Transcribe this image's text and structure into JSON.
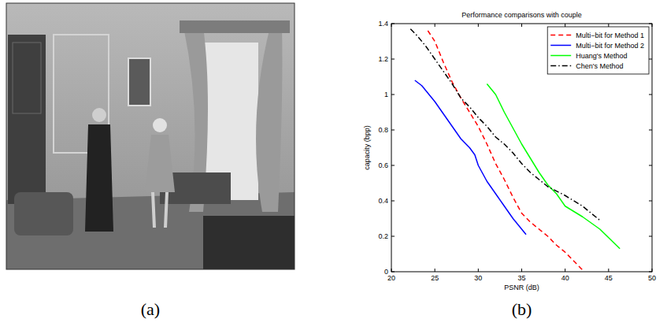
{
  "panel_labels": {
    "image": "(a)",
    "chart": "(b)"
  },
  "chart_data": {
    "type": "line",
    "title": "Performance comparisons with couple",
    "x_label": "PSNR (dB)",
    "y_label": "capacity (bpp)",
    "xlim": [
      20,
      50
    ],
    "xticks": [
      20,
      25,
      30,
      35,
      40,
      45,
      50
    ],
    "ylim": [
      0,
      1.4
    ],
    "yticks": [
      0,
      0.2,
      0.4,
      0.6,
      0.8,
      1,
      1.2,
      1.4
    ],
    "grid": false,
    "legend": "upper right",
    "series": [
      {
        "name": "Multi−bit for Method 1",
        "color": "#ff0000",
        "line_style": "dashed",
        "x": [
          24.2,
          25,
          26,
          27,
          28,
          29,
          30,
          31,
          32,
          33,
          34,
          35,
          36,
          37,
          38,
          39,
          40,
          41,
          42
        ],
        "values": [
          1.36,
          1.3,
          1.18,
          1.07,
          0.98,
          0.9,
          0.82,
          0.72,
          0.61,
          0.52,
          0.42,
          0.33,
          0.28,
          0.24,
          0.2,
          0.15,
          0.11,
          0.06,
          0.01
        ]
      },
      {
        "name": "Multi−bit for Method 2",
        "color": "#0000ff",
        "line_style": "solid",
        "x": [
          22.7,
          23.5,
          25,
          26,
          27,
          28,
          29,
          29.6,
          30,
          31,
          32,
          33,
          34,
          35.5
        ],
        "values": [
          1.08,
          1.05,
          0.96,
          0.89,
          0.82,
          0.75,
          0.7,
          0.66,
          0.6,
          0.51,
          0.44,
          0.37,
          0.3,
          0.21
        ]
      },
      {
        "name": "Huang's Method",
        "color": "#00ff00",
        "line_style": "solid",
        "x": [
          31,
          32,
          33,
          34,
          35,
          36,
          37,
          38,
          39,
          40,
          42,
          44,
          46.3
        ],
        "values": [
          1.06,
          1.0,
          0.9,
          0.81,
          0.72,
          0.64,
          0.56,
          0.49,
          0.44,
          0.37,
          0.31,
          0.24,
          0.13
        ]
      },
      {
        "name": "Chen's Method",
        "color": "#000000",
        "line_style": "dashdot",
        "x": [
          22.2,
          23,
          24,
          25,
          26,
          27,
          28,
          29,
          30,
          31,
          32,
          33,
          34,
          35,
          36,
          37,
          38,
          40,
          42,
          44
        ],
        "values": [
          1.37,
          1.33,
          1.27,
          1.2,
          1.13,
          1.06,
          0.98,
          0.93,
          0.87,
          0.82,
          0.76,
          0.72,
          0.67,
          0.61,
          0.56,
          0.52,
          0.48,
          0.43,
          0.37,
          0.29
        ]
      }
    ]
  }
}
